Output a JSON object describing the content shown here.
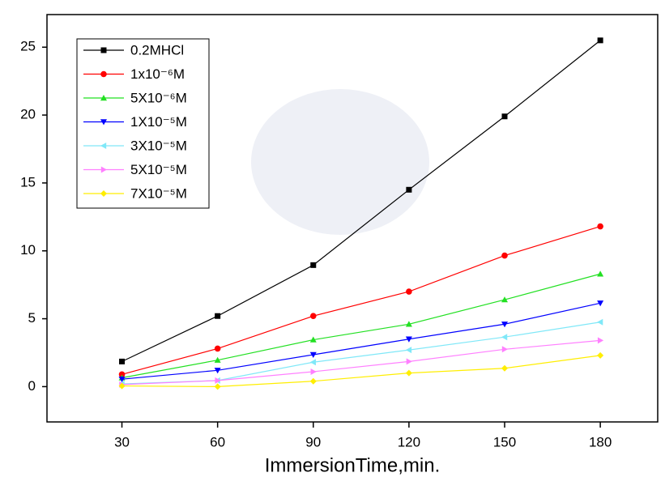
{
  "chart_data": {
    "type": "line",
    "x_label": "ImmersionTime,min.",
    "x": [
      30,
      60,
      90,
      120,
      150,
      180
    ],
    "series": [
      {
        "name": "0.2MHCl",
        "color": "#000000",
        "marker": "square",
        "values": [
          1.85,
          5.2,
          8.95,
          14.5,
          19.9,
          25.5
        ]
      },
      {
        "name": "1x10⁻⁶M",
        "color": "#ff0000",
        "marker": "circle",
        "values": [
          0.9,
          2.8,
          5.2,
          7.0,
          9.65,
          11.8
        ]
      },
      {
        "name": "5X10⁻⁶M",
        "color": "#22e022",
        "marker": "triangle-up",
        "values": [
          0.65,
          1.95,
          3.45,
          4.6,
          6.4,
          8.3
        ]
      },
      {
        "name": "1X10⁻⁵M",
        "color": "#0000ff",
        "marker": "triangle-down",
        "values": [
          0.55,
          1.2,
          2.35,
          3.5,
          4.6,
          6.15
        ]
      },
      {
        "name": "3X10⁻⁵M",
        "color": "#80e8f8",
        "marker": "triangle-left",
        "values": [
          0.2,
          0.45,
          1.8,
          2.7,
          3.65,
          4.75
        ]
      },
      {
        "name": "5X10⁻⁵M",
        "color": "#ff80ff",
        "marker": "triangle-right",
        "values": [
          0.15,
          0.45,
          1.1,
          1.85,
          2.75,
          3.4
        ]
      },
      {
        "name": "7X10⁻⁵M",
        "color": "#ffee00",
        "marker": "diamond",
        "values": [
          0.05,
          0.0,
          0.4,
          1.0,
          1.35,
          2.3
        ]
      }
    ],
    "xlim": [
      6.5,
      198
    ],
    "ylim": [
      -2.6,
      27.4
    ],
    "xticks": [
      30,
      60,
      90,
      120,
      150,
      180
    ],
    "yticks": [
      0,
      5,
      10,
      15,
      20,
      25
    ],
    "legend": "upper-left"
  }
}
